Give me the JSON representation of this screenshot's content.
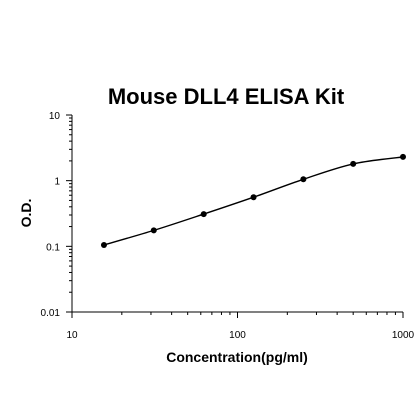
{
  "chart_data": {
    "type": "scatter",
    "title": "Mouse DLL4 ELISA Kit",
    "xlabel": "Concentration(pg/ml)",
    "ylabel": "O.D.",
    "xscale": "log",
    "yscale": "log",
    "xlim": [
      10,
      1000
    ],
    "ylim": [
      0.01,
      10
    ],
    "xticks": [
      10,
      100,
      1000
    ],
    "xtick_labels": [
      "10",
      "100",
      "1000"
    ],
    "yticks": [
      0.01,
      0.1,
      1,
      10
    ],
    "ytick_labels": [
      "0.01",
      "0.1",
      "1",
      "10"
    ],
    "grid": false,
    "legend": "none",
    "series": [
      {
        "points": [
          {
            "x": 15.6,
            "y": 0.105
          },
          {
            "x": 31.2,
            "y": 0.175
          },
          {
            "x": 62.5,
            "y": 0.31
          },
          {
            "x": 125,
            "y": 0.56
          },
          {
            "x": 250,
            "y": 1.05
          },
          {
            "x": 500,
            "y": 1.8
          },
          {
            "x": 1000,
            "y": 2.3
          }
        ],
        "fit_curve": "smooth",
        "color": "#000000"
      }
    ]
  }
}
